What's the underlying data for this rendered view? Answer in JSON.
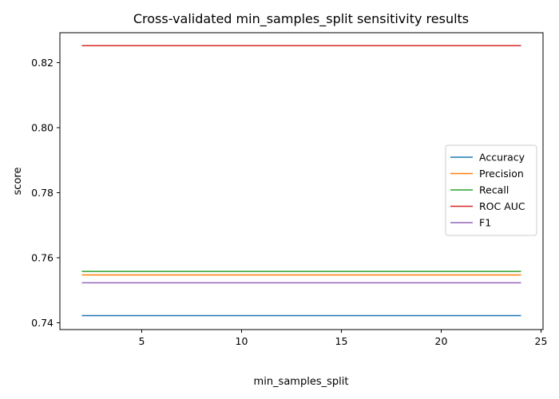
{
  "chart_data": {
    "type": "line",
    "title": "Cross-validated min_samples_split sensitivity results",
    "xlabel": "min_samples_split",
    "ylabel": "score",
    "xlim": [
      0.9,
      25.1
    ],
    "ylim": [
      0.7379,
      0.8292
    ],
    "x_ticks": [
      5,
      10,
      15,
      20,
      25
    ],
    "y_ticks": [
      0.74,
      0.76,
      0.78,
      0.8,
      0.82
    ],
    "y_tick_labels": [
      "0.74",
      "0.76",
      "0.78",
      "0.80",
      "0.82"
    ],
    "x": [
      2,
      3,
      4,
      5,
      6,
      7,
      8,
      9,
      10,
      11,
      12,
      13,
      14,
      15,
      16,
      17,
      18,
      19,
      20,
      21,
      22,
      23,
      24
    ],
    "series": [
      {
        "name": "Accuracy",
        "color": "#1f77b4",
        "values": [
          0.7422,
          0.7422,
          0.7422,
          0.7422,
          0.7422,
          0.7422,
          0.7422,
          0.7422,
          0.7422,
          0.7422,
          0.7422,
          0.7422,
          0.7422,
          0.7422,
          0.7422,
          0.7422,
          0.7422,
          0.7422,
          0.7422,
          0.7422,
          0.7422,
          0.7422,
          0.7422
        ]
      },
      {
        "name": "Precision",
        "color": "#ff7f0e",
        "values": [
          0.7547,
          0.7547,
          0.7547,
          0.7547,
          0.7547,
          0.7547,
          0.7547,
          0.7547,
          0.7547,
          0.7547,
          0.7547,
          0.7547,
          0.7547,
          0.7547,
          0.7547,
          0.7547,
          0.7547,
          0.7547,
          0.7547,
          0.7547,
          0.7547,
          0.7547,
          0.7547
        ]
      },
      {
        "name": "Recall",
        "color": "#2ca02c",
        "values": [
          0.7558,
          0.7558,
          0.7558,
          0.7558,
          0.7558,
          0.7558,
          0.7558,
          0.7558,
          0.7558,
          0.7558,
          0.7558,
          0.7558,
          0.7558,
          0.7558,
          0.7558,
          0.7558,
          0.7558,
          0.7558,
          0.7558,
          0.7558,
          0.7558,
          0.7558,
          0.7558
        ]
      },
      {
        "name": "ROC AUC",
        "color": "#d62728",
        "values": [
          0.8252,
          0.8252,
          0.8252,
          0.8252,
          0.8252,
          0.8252,
          0.8252,
          0.8252,
          0.8252,
          0.8252,
          0.8252,
          0.8252,
          0.8252,
          0.8252,
          0.8252,
          0.8252,
          0.8252,
          0.8252,
          0.8252,
          0.8252,
          0.8252,
          0.8252,
          0.8252
        ]
      },
      {
        "name": "F1",
        "color": "#9467bd",
        "values": [
          0.7523,
          0.7523,
          0.7523,
          0.7523,
          0.7523,
          0.7523,
          0.7523,
          0.7523,
          0.7523,
          0.7523,
          0.7523,
          0.7523,
          0.7523,
          0.7523,
          0.7523,
          0.7523,
          0.7523,
          0.7523,
          0.7523,
          0.7523,
          0.7523,
          0.7523,
          0.7523
        ]
      }
    ],
    "legend_position": "center-right",
    "grid": false
  }
}
